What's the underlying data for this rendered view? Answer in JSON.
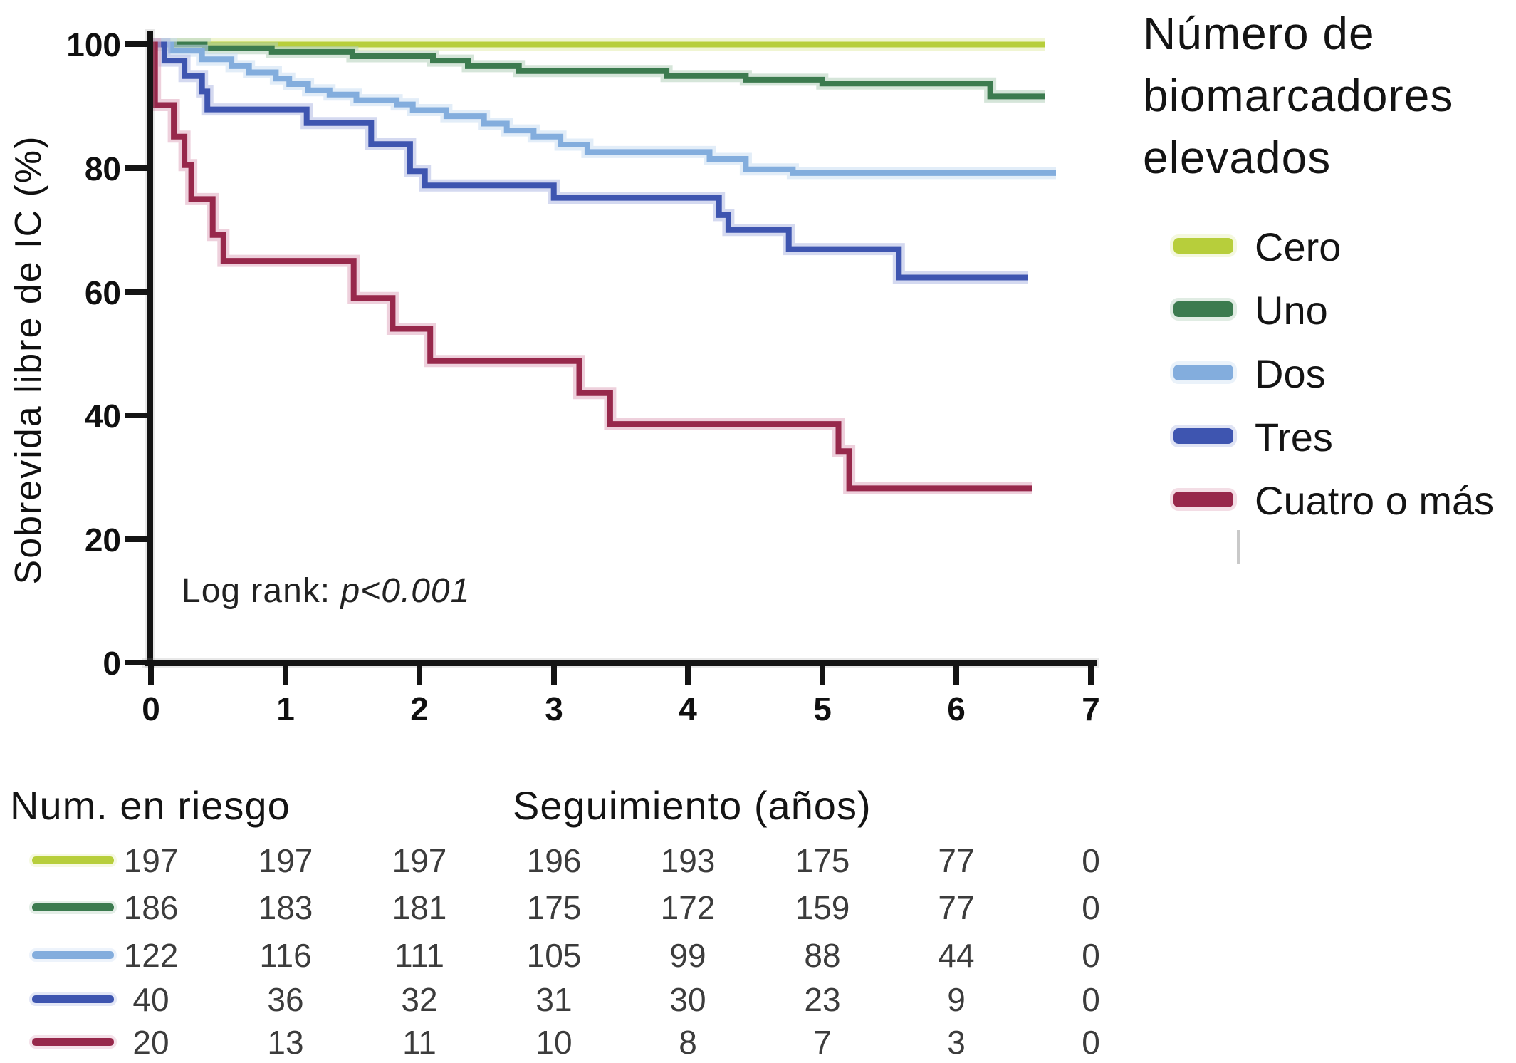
{
  "figure": {
    "y_axis": {
      "label": "Sobrevida libre de IC (%)",
      "ticks": [
        "0",
        "20",
        "40",
        "60",
        "80",
        "100"
      ]
    },
    "x_axis": {
      "title": "Seguimiento (años)",
      "ticks": [
        "0",
        "1",
        "2",
        "3",
        "4",
        "5",
        "6",
        "7"
      ]
    },
    "annotation": {
      "label": "Log rank: ",
      "value": "p<0.001"
    },
    "legend": {
      "title_lines": [
        "Número de",
        "biomarcadores",
        "elevados"
      ]
    },
    "risk_table_title": "Num. en riesgo"
  },
  "chart_data": {
    "type": "line",
    "subtype": "kaplan-meier-step",
    "title": "",
    "xlabel": "Seguimiento (años)",
    "ylabel": "Sobrevida libre de IC (%)",
    "xlim": [
      0,
      7
    ],
    "ylim": [
      0,
      100
    ],
    "x_ticks": [
      0,
      1,
      2,
      3,
      4,
      5,
      6,
      7
    ],
    "y_ticks": [
      0,
      20,
      40,
      60,
      80,
      100
    ],
    "grid": false,
    "legend_position": "right",
    "legend_title": "Número de biomarcadores elevados",
    "annotation": "Log rank: p<0.001",
    "series": [
      {
        "name": "Cero",
        "color": "#b7ce3b",
        "halo": "#e4edad",
        "steps": [
          [
            0,
            100
          ],
          [
            6.66,
            100
          ]
        ]
      },
      {
        "name": "Uno",
        "color": "#3c7b4f",
        "halo": "#b2cfba",
        "steps": [
          [
            0,
            100
          ],
          [
            0.4,
            99.4
          ],
          [
            0.9,
            98.8
          ],
          [
            1.5,
            98.1
          ],
          [
            2.1,
            97.4
          ],
          [
            2.36,
            96.5
          ],
          [
            2.74,
            95.7
          ],
          [
            3.84,
            94.9
          ],
          [
            4.43,
            94.3
          ],
          [
            5.0,
            93.7
          ],
          [
            6.25,
            91.6
          ],
          [
            6.66,
            91.6
          ]
        ]
      },
      {
        "name": "Dos",
        "color": "#83addd",
        "halo": "#cadef3",
        "steps": [
          [
            0,
            100
          ],
          [
            0.15,
            99
          ],
          [
            0.38,
            97.6
          ],
          [
            0.6,
            96.5
          ],
          [
            0.73,
            95.5
          ],
          [
            0.93,
            94.5
          ],
          [
            1.03,
            93.6
          ],
          [
            1.17,
            92.6
          ],
          [
            1.33,
            91.9
          ],
          [
            1.53,
            91
          ],
          [
            1.83,
            90.3
          ],
          [
            1.95,
            89.4
          ],
          [
            2.2,
            88.4
          ],
          [
            2.48,
            87.2
          ],
          [
            2.65,
            86.1
          ],
          [
            2.85,
            85.1
          ],
          [
            3.05,
            83.8
          ],
          [
            3.25,
            82.6
          ],
          [
            4.16,
            81.5
          ],
          [
            4.43,
            79.8
          ],
          [
            4.78,
            79.2
          ],
          [
            6.74,
            79.2
          ]
        ]
      },
      {
        "name": "Tres",
        "color": "#3e55b0",
        "halo": "#b0b9e4",
        "steps": [
          [
            0,
            100
          ],
          [
            0.1,
            97.4
          ],
          [
            0.25,
            94.9
          ],
          [
            0.38,
            92.4
          ],
          [
            0.42,
            89.5
          ],
          [
            1.16,
            87.3
          ],
          [
            1.64,
            83.9
          ],
          [
            1.93,
            79.5
          ],
          [
            2.04,
            77.2
          ],
          [
            3.0,
            75.2
          ],
          [
            4.23,
            72.4
          ],
          [
            4.3,
            70.0
          ],
          [
            4.75,
            66.9
          ],
          [
            5.57,
            62.3
          ],
          [
            6.53,
            62.3
          ]
        ]
      },
      {
        "name": "Cuatro o más",
        "color": "#97284b",
        "halo": "#e0aabf",
        "steps": [
          [
            0,
            100
          ],
          [
            0.03,
            90.2
          ],
          [
            0.17,
            85.1
          ],
          [
            0.25,
            80.5
          ],
          [
            0.3,
            75.0
          ],
          [
            0.46,
            69.2
          ],
          [
            0.54,
            65.0
          ],
          [
            1.51,
            59.0
          ],
          [
            1.8,
            54.0
          ],
          [
            2.08,
            48.8
          ],
          [
            3.19,
            43.6
          ],
          [
            3.42,
            38.6
          ],
          [
            5.12,
            34.2
          ],
          [
            5.2,
            28.2
          ],
          [
            6.56,
            28.2
          ]
        ]
      }
    ],
    "risk_table": {
      "title": "Num. en riesgo",
      "time_points": [
        0,
        1,
        2,
        3,
        4,
        5,
        6,
        7
      ],
      "rows": [
        {
          "group": "Cero",
          "counts": [
            197,
            197,
            197,
            196,
            193,
            175,
            77,
            0
          ]
        },
        {
          "group": "Uno",
          "counts": [
            186,
            183,
            181,
            175,
            172,
            159,
            77,
            0
          ]
        },
        {
          "group": "Dos",
          "counts": [
            122,
            116,
            111,
            105,
            99,
            88,
            44,
            0
          ]
        },
        {
          "group": "Tres",
          "counts": [
            40,
            36,
            32,
            31,
            30,
            23,
            9,
            0
          ]
        },
        {
          "group": "Cuatro o más",
          "counts": [
            20,
            13,
            11,
            10,
            8,
            7,
            3,
            0
          ]
        }
      ]
    }
  }
}
